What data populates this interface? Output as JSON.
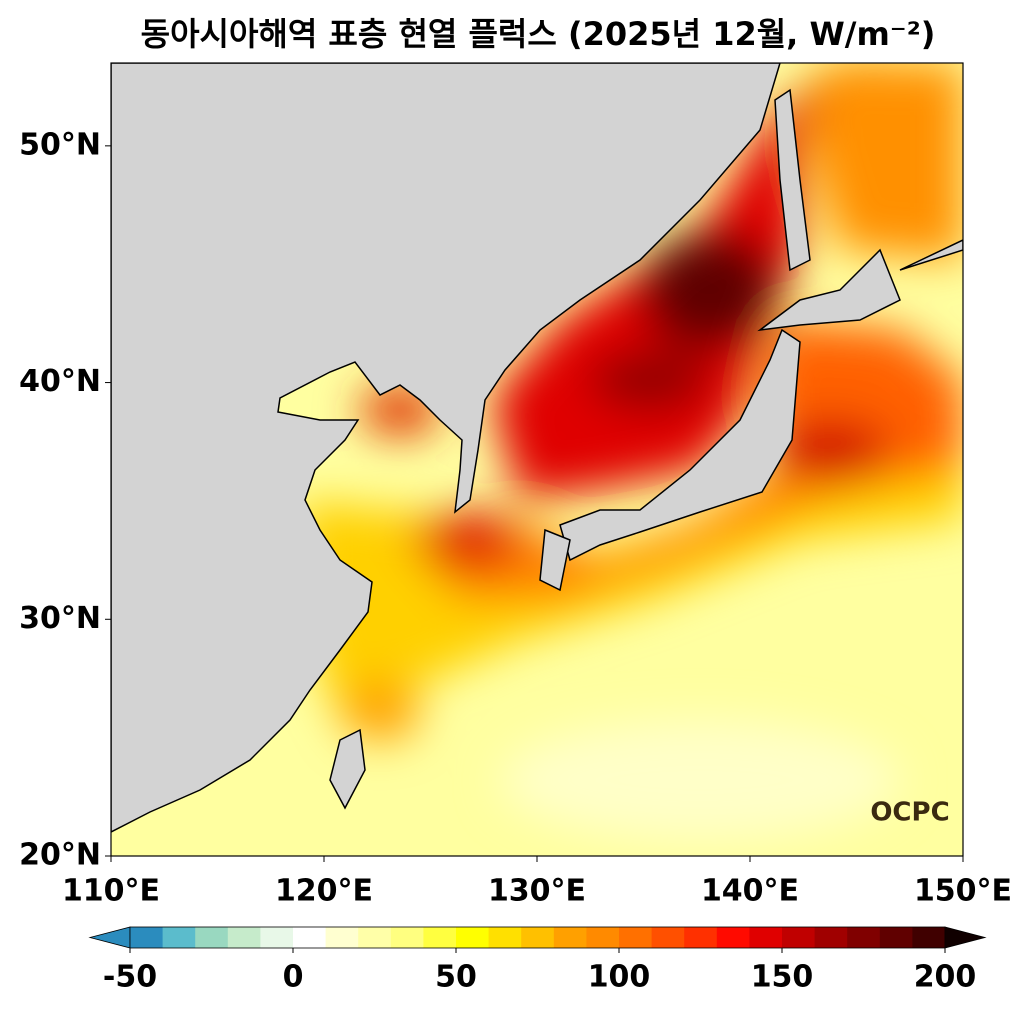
{
  "chart_data": {
    "type": "map",
    "title": "동아시아해역 표층 현열 플럭스 (2025년 12월, W/m⁻²)",
    "xlim": [
      110,
      150
    ],
    "ylim": [
      20,
      53.5
    ],
    "xticks": [
      {
        "value": 110,
        "label": "110°E"
      },
      {
        "value": 120,
        "label": "120°E"
      },
      {
        "value": 130,
        "label": "130°E"
      },
      {
        "value": 140,
        "label": "140°E"
      },
      {
        "value": 150,
        "label": "150°E"
      }
    ],
    "yticks": [
      {
        "value": 20,
        "label": "20°N"
      },
      {
        "value": 30,
        "label": "30°N"
      },
      {
        "value": 40,
        "label": "40°N"
      },
      {
        "value": 50,
        "label": "50°N"
      }
    ],
    "colorbar": {
      "ticks": [
        -50,
        0,
        50,
        100,
        150,
        200
      ],
      "under_color": "#2b8cbe",
      "over_color": "#100000",
      "colors": [
        "#2b8cbe",
        "#5bbccc",
        "#99d8c0",
        "#c6ebcb",
        "#e8f8e8",
        "#ffffff",
        "#ffffd0",
        "#ffffa8",
        "#ffff80",
        "#ffff40",
        "#ffff00",
        "#ffe000",
        "#ffc000",
        "#ffa000",
        "#ff8a00",
        "#ff7000",
        "#ff5000",
        "#ff3000",
        "#ff0a00",
        "#e00000",
        "#c00000",
        "#a00000",
        "#800000",
        "#600000",
        "#400000"
      ]
    },
    "logo": "OCPC"
  }
}
